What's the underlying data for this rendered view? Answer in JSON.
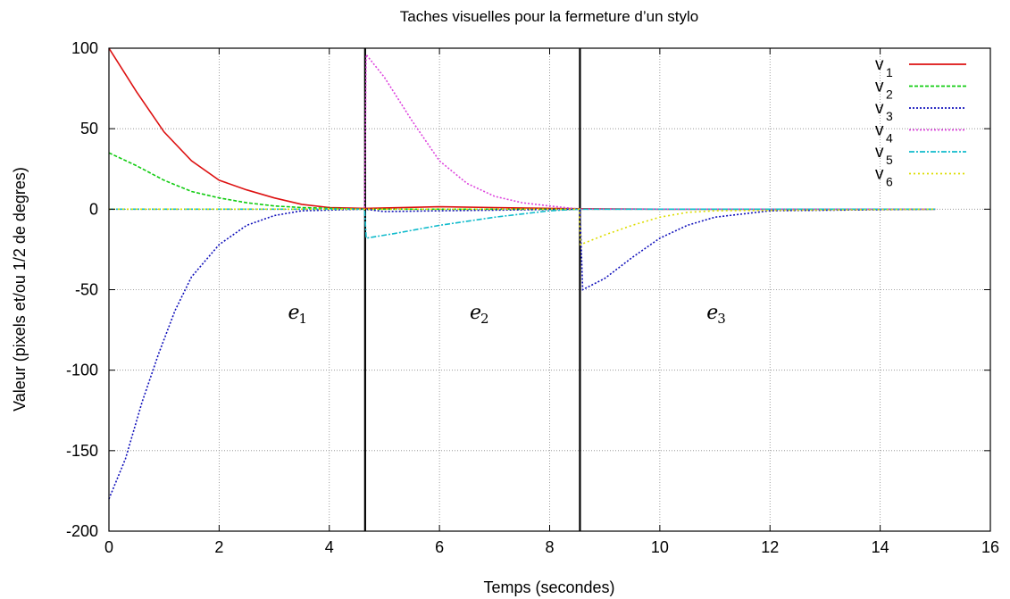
{
  "chart_data": {
    "type": "line",
    "title": "Taches visuelles pour la fermeture d’un stylo",
    "xlabel": "Temps (secondes)",
    "ylabel": "Valeur  (pixels et/ou 1/2 de degres)",
    "xlim": [
      0,
      16
    ],
    "ylim": [
      -200,
      100
    ],
    "xticks": [
      "0",
      "2",
      "4",
      "6",
      "8",
      "10",
      "12",
      "14",
      "16"
    ],
    "yticks": [
      "100",
      "50",
      "0",
      "-50",
      "-100",
      "-150",
      "-200"
    ],
    "grid": true,
    "legend_position": "top-right",
    "phase_boundaries": [
      4.65,
      8.55
    ],
    "phases": [
      {
        "label": "e",
        "sub": "1",
        "x": 3.25,
        "y": -68
      },
      {
        "label": "e",
        "sub": "2",
        "x": 6.55,
        "y": -68
      },
      {
        "label": "e",
        "sub": "3",
        "x": 10.85,
        "y": -68
      }
    ],
    "series": [
      {
        "name": "v",
        "sub": "1",
        "color": "#dd1111",
        "dash": "",
        "points": [
          [
            0,
            100
          ],
          [
            0.5,
            73
          ],
          [
            1,
            48
          ],
          [
            1.5,
            30
          ],
          [
            2,
            18
          ],
          [
            2.5,
            12
          ],
          [
            3,
            7
          ],
          [
            3.5,
            3
          ],
          [
            4,
            1
          ],
          [
            4.65,
            0.5
          ],
          [
            6,
            1.5
          ],
          [
            7,
            1
          ],
          [
            8.55,
            0.3
          ],
          [
            10,
            0
          ],
          [
            15,
            0
          ]
        ]
      },
      {
        "name": "v",
        "sub": "2",
        "color": "#11cc11",
        "dash": "4,2",
        "points": [
          [
            0,
            35
          ],
          [
            0.5,
            27
          ],
          [
            1,
            18
          ],
          [
            1.5,
            11
          ],
          [
            2,
            7
          ],
          [
            2.5,
            4
          ],
          [
            3,
            2
          ],
          [
            3.5,
            1
          ],
          [
            4.65,
            0
          ],
          [
            8.55,
            0
          ],
          [
            15,
            0
          ]
        ]
      },
      {
        "name": "v",
        "sub": "3",
        "color": "#1111bb",
        "dash": "2,2",
        "points": [
          [
            0,
            -180
          ],
          [
            0.3,
            -155
          ],
          [
            0.6,
            -120
          ],
          [
            0.9,
            -90
          ],
          [
            1.2,
            -63
          ],
          [
            1.5,
            -42
          ],
          [
            2,
            -22
          ],
          [
            2.5,
            -10
          ],
          [
            3,
            -4
          ],
          [
            3.5,
            -1
          ],
          [
            4.65,
            0
          ],
          [
            5,
            -1.5
          ],
          [
            6,
            -1
          ],
          [
            8.55,
            0
          ],
          [
            8.6,
            -50
          ],
          [
            9,
            -43
          ],
          [
            9.5,
            -30
          ],
          [
            10,
            -18
          ],
          [
            10.5,
            -10
          ],
          [
            11,
            -5
          ],
          [
            12,
            -1
          ],
          [
            15,
            0
          ]
        ]
      },
      {
        "name": "v",
        "sub": "4",
        "color": "#dd44dd",
        "dash": "2,2",
        "points": [
          [
            0,
            0
          ],
          [
            4.64,
            0
          ],
          [
            4.67,
            96
          ],
          [
            5,
            82
          ],
          [
            5.5,
            55
          ],
          [
            6,
            30
          ],
          [
            6.5,
            16
          ],
          [
            7,
            8
          ],
          [
            7.5,
            4
          ],
          [
            8,
            2
          ],
          [
            8.55,
            0
          ],
          [
            15,
            0
          ]
        ]
      },
      {
        "name": "v",
        "sub": "5",
        "color": "#11bbcc",
        "dash": "6,2,2,2",
        "points": [
          [
            0,
            0
          ],
          [
            4.64,
            0
          ],
          [
            4.67,
            -18
          ],
          [
            5.2,
            -15
          ],
          [
            6,
            -10
          ],
          [
            7,
            -5
          ],
          [
            8,
            -1
          ],
          [
            8.55,
            0
          ],
          [
            15,
            0
          ]
        ]
      },
      {
        "name": "v",
        "sub": "6",
        "color": "#dddd00",
        "dash": "2,3",
        "points": [
          [
            0,
            0
          ],
          [
            8.54,
            0
          ],
          [
            8.56,
            -22
          ],
          [
            9,
            -16
          ],
          [
            9.5,
            -10
          ],
          [
            10,
            -5
          ],
          [
            10.5,
            -2
          ],
          [
            11,
            -1
          ],
          [
            15,
            0
          ]
        ]
      }
    ]
  }
}
